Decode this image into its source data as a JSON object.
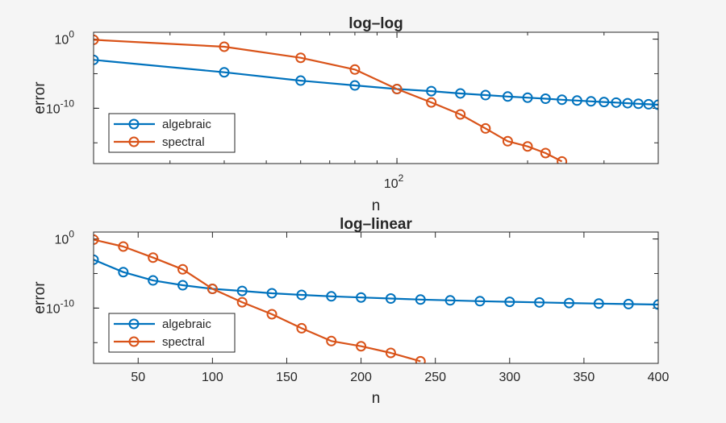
{
  "chart_data": [
    {
      "type": "line",
      "title": "log–log",
      "xlabel": "n",
      "ylabel": "error",
      "xscale": "log",
      "yscale": "log",
      "xlim": [
        20,
        400
      ],
      "ylim": [
        1e-18,
        10
      ],
      "xticks": [
        {
          "value": 100,
          "base": "10",
          "exp": "2"
        }
      ],
      "yticks": [
        {
          "value": 1,
          "base": "10",
          "exp": "0"
        },
        {
          "value": 1e-10,
          "base": "10",
          "exp": "-10"
        }
      ],
      "legend": {
        "position": "bottom-left"
      },
      "series": [
        {
          "name": "algebraic",
          "color": "#0072BD",
          "x": [
            20,
            40,
            60,
            80,
            100,
            120,
            140,
            160,
            180,
            200,
            220,
            240,
            260,
            280,
            300,
            320,
            340,
            360,
            380,
            400
          ],
          "y": [
            0.001,
            1.6e-05,
            1e-06,
            2e-07,
            6e-08,
            3e-08,
            1.4e-08,
            8e-09,
            5e-09,
            3.4e-09,
            2.4e-09,
            1.7e-09,
            1.3e-09,
            1e-09,
            8e-10,
            6.6e-10,
            5.4e-10,
            4.5e-10,
            3.8e-10,
            3.2e-10
          ]
        },
        {
          "name": "spectral",
          "color": "#D95319",
          "x": [
            20,
            40,
            60,
            80,
            100,
            120,
            140,
            160,
            180,
            200,
            220,
            240
          ],
          "y": [
            0.8,
            0.08,
            0.002,
            4e-05,
            6e-08,
            7e-10,
            1.3e-11,
            1.2e-13,
            1.7e-15,
            3e-16,
            3.3e-17,
            2e-18
          ]
        }
      ]
    },
    {
      "type": "line",
      "title": "log–linear",
      "xlabel": "n",
      "ylabel": "error",
      "xscale": "linear",
      "yscale": "log",
      "xlim": [
        20,
        400
      ],
      "ylim": [
        1e-18,
        10
      ],
      "xticks": [
        {
          "value": 50,
          "label": "50"
        },
        {
          "value": 100,
          "label": "100"
        },
        {
          "value": 150,
          "label": "150"
        },
        {
          "value": 200,
          "label": "200"
        },
        {
          "value": 250,
          "label": "250"
        },
        {
          "value": 300,
          "label": "300"
        },
        {
          "value": 350,
          "label": "350"
        },
        {
          "value": 400,
          "label": "400"
        }
      ],
      "yticks": [
        {
          "value": 1,
          "base": "10",
          "exp": "0"
        },
        {
          "value": 1e-10,
          "base": "10",
          "exp": "-10"
        }
      ],
      "legend": {
        "position": "bottom-left"
      },
      "series": [
        {
          "name": "algebraic",
          "color": "#0072BD",
          "x": [
            20,
            40,
            60,
            80,
            100,
            120,
            140,
            160,
            180,
            200,
            220,
            240,
            260,
            280,
            300,
            320,
            340,
            360,
            380,
            400
          ],
          "y": [
            0.001,
            1.6e-05,
            1e-06,
            2e-07,
            6e-08,
            3e-08,
            1.4e-08,
            8e-09,
            5e-09,
            3.4e-09,
            2.4e-09,
            1.7e-09,
            1.3e-09,
            1e-09,
            8e-10,
            6.6e-10,
            5.4e-10,
            4.5e-10,
            3.8e-10,
            3.2e-10
          ]
        },
        {
          "name": "spectral",
          "color": "#D95319",
          "x": [
            20,
            40,
            60,
            80,
            100,
            120,
            140,
            160,
            180,
            200,
            220,
            240
          ],
          "y": [
            0.8,
            0.08,
            0.002,
            4e-05,
            6e-08,
            7e-10,
            1.3e-11,
            1.2e-13,
            1.7e-15,
            3e-16,
            3.3e-17,
            2e-18
          ]
        }
      ]
    }
  ]
}
